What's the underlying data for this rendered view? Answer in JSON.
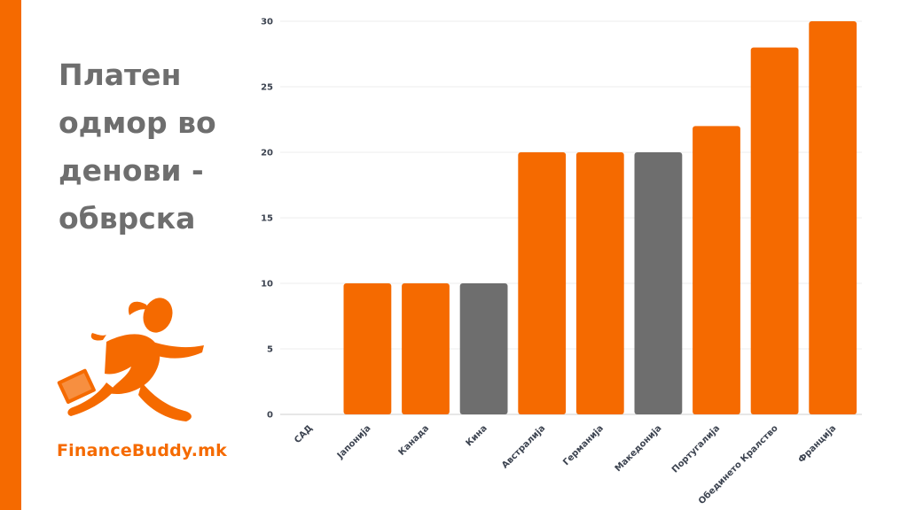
{
  "title": "Платен одмор во денови - обврска",
  "brand": "FinanceBuddy.mk",
  "colors": {
    "accent": "#f56a00",
    "highlight": "#6e6e6e",
    "text": "#6e6e6e"
  },
  "chart_data": {
    "type": "bar",
    "categories": [
      "САД",
      "Јапонија",
      "Канада",
      "Кина",
      "Австралија",
      "Германија",
      "Македонија",
      "Португалија",
      "Обединето Кралство",
      "Франција"
    ],
    "values": [
      0,
      10,
      10,
      10,
      20,
      20,
      20,
      22,
      28,
      30
    ],
    "highlighted": [
      "Кина",
      "Македонија"
    ],
    "ylim": [
      0,
      30
    ],
    "yticks": [
      0,
      5,
      10,
      15,
      20,
      25,
      30
    ],
    "grid": true,
    "xlabel": "",
    "ylabel": ""
  }
}
